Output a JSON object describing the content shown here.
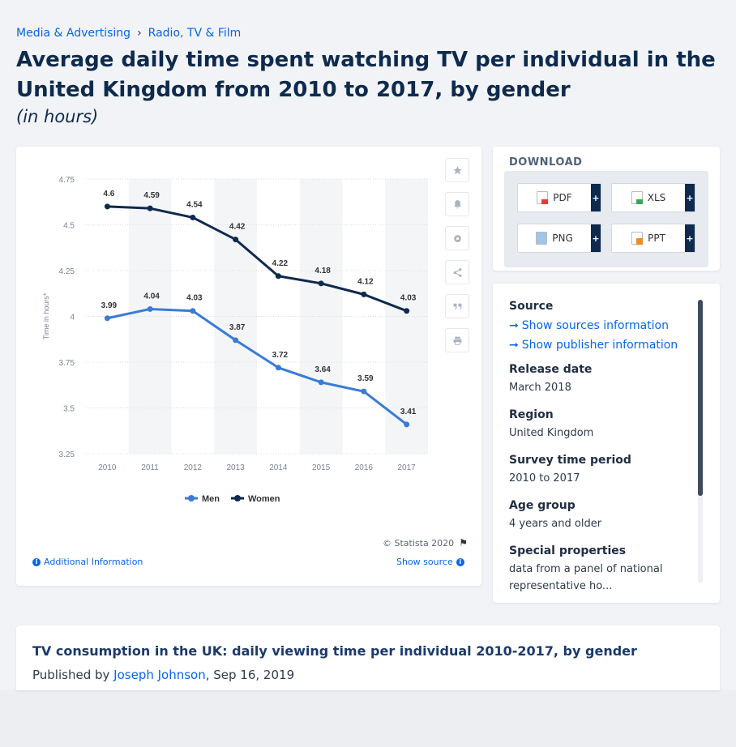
{
  "breadcrumb": {
    "items": [
      "Media & Advertising",
      "Radio, TV & Film"
    ],
    "separator": "›"
  },
  "title": "Average daily time spent watching TV per individual in the United Kingdom from 2010 to 2017, by gender",
  "unit": "(in hours)",
  "chart_data": {
    "type": "line",
    "x": [
      "2010",
      "2011",
      "2012",
      "2013",
      "2014",
      "2015",
      "2016",
      "2017"
    ],
    "series": [
      {
        "name": "Men",
        "color": "#3a7bd5",
        "values": [
          3.99,
          4.04,
          4.03,
          3.87,
          3.72,
          3.64,
          3.59,
          3.41
        ]
      },
      {
        "name": "Women",
        "color": "#0e2a4d",
        "values": [
          4.6,
          4.59,
          4.54,
          4.42,
          4.22,
          4.18,
          4.12,
          4.03
        ]
      }
    ],
    "ylabel": "Time in hours*",
    "ylim": [
      3.25,
      4.75
    ],
    "yticks": [
      "3.25",
      "3.5",
      "3.75",
      "4",
      "4.25",
      "4.5",
      "4.75"
    ],
    "legend": "bottom-center",
    "grid": true
  },
  "chart_footer": {
    "copyright": "© Statista 2020",
    "additional_info": "Additional Information",
    "show_source": "Show source"
  },
  "tools": [
    "star-icon",
    "bell-icon",
    "gear-icon",
    "share-icon",
    "quote-icon",
    "print-icon"
  ],
  "download": {
    "title": "DOWNLOAD",
    "buttons": [
      {
        "label": "PDF",
        "icon": "pdf-file-icon"
      },
      {
        "label": "XLS",
        "icon": "xls-file-icon"
      },
      {
        "label": "PNG",
        "icon": "png-file-icon"
      },
      {
        "label": "PPT",
        "icon": "ppt-file-icon"
      }
    ],
    "plus": "+"
  },
  "info": {
    "source_label": "Source",
    "show_sources": "Show sources information",
    "show_publisher": "Show publisher information",
    "release_label": "Release date",
    "release_value": "March 2018",
    "region_label": "Region",
    "region_value": "United Kingdom",
    "survey_label": "Survey time period",
    "survey_value": "2010 to 2017",
    "age_label": "Age group",
    "age_value": "4 years and older",
    "special_label": "Special properties",
    "special_value": "data from a panel of national representative ho..."
  },
  "publication": {
    "title": "TV consumption in the UK: daily viewing time per individual 2010-2017, by gender",
    "published_by": "Published by",
    "author": "Joseph Johnson",
    "date": ", Sep 16, 2019"
  },
  "colors": {
    "men": "#3a7bd5",
    "women": "#0e2a4d",
    "accent": "#0666e5"
  }
}
